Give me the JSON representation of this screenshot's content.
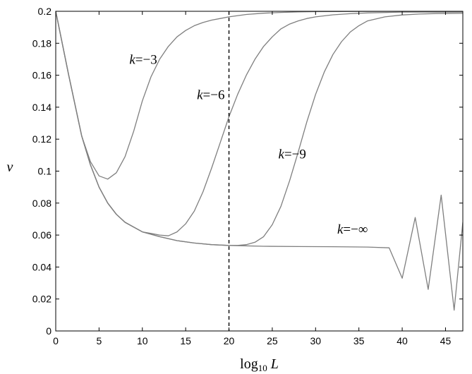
{
  "chart_data": {
    "type": "line",
    "title": "",
    "xlabel": {
      "base": "log",
      "sub": "10",
      "var": "L"
    },
    "ylabel": "ν",
    "xlim": [
      0,
      47
    ],
    "ylim": [
      0,
      0.2
    ],
    "x_ticks": [
      0,
      5,
      10,
      15,
      20,
      25,
      30,
      35,
      40,
      45
    ],
    "y_ticks": [
      0,
      0.02,
      0.04,
      0.06,
      0.08,
      0.1,
      0.12,
      0.14,
      0.16,
      0.18,
      0.2
    ],
    "x_tick_labels": [
      "0",
      "5",
      "10",
      "15",
      "20",
      "25",
      "30",
      "35",
      "40",
      "45"
    ],
    "y_tick_labels": [
      "0",
      "0.02",
      "0.04",
      "0.06",
      "0.08",
      "0.1",
      "0.12",
      "0.14",
      "0.16",
      "0.18",
      "0.2"
    ],
    "grid": false,
    "legend": "none",
    "line_color": "#7f7f7f",
    "vertical_marker": {
      "x": 20,
      "style": "dashed",
      "color": "#000000"
    },
    "series": [
      {
        "label": "k=−3",
        "label_pos": [
          8.5,
          0.167
        ],
        "x": [
          0,
          1.5,
          3,
          4,
          5,
          6,
          7,
          8,
          9,
          10,
          11,
          12,
          13,
          14,
          15,
          16,
          17,
          18,
          19,
          20,
          22,
          24,
          26,
          28,
          30,
          35,
          40,
          47
        ],
        "y": [
          0.2,
          0.16,
          0.122,
          0.106,
          0.097,
          0.095,
          0.099,
          0.109,
          0.125,
          0.144,
          0.159,
          0.17,
          0.178,
          0.184,
          0.188,
          0.191,
          0.193,
          0.1945,
          0.1955,
          0.1965,
          0.198,
          0.1988,
          0.1993,
          0.1996,
          0.1998,
          0.1999,
          0.2,
          0.2
        ]
      },
      {
        "label": "k=−6",
        "label_pos": [
          16.3,
          0.145
        ],
        "x": [
          0,
          1.5,
          3,
          4,
          5,
          6,
          7,
          8,
          9,
          10,
          11,
          12,
          13,
          14,
          15,
          16,
          17,
          18,
          19,
          20,
          21,
          22,
          23,
          24,
          25,
          26,
          27,
          28,
          29,
          30,
          32,
          34,
          36,
          40,
          47
        ],
        "y": [
          0.2,
          0.16,
          0.122,
          0.104,
          0.09,
          0.08,
          0.073,
          0.068,
          0.065,
          0.062,
          0.061,
          0.06,
          0.0595,
          0.062,
          0.067,
          0.075,
          0.087,
          0.102,
          0.118,
          0.134,
          0.148,
          0.16,
          0.17,
          0.178,
          0.184,
          0.189,
          0.192,
          0.194,
          0.1955,
          0.1965,
          0.1978,
          0.1985,
          0.199,
          0.1995,
          0.1995
        ]
      },
      {
        "label": "k=−9",
        "label_pos": [
          25.7,
          0.108
        ],
        "x": [
          0,
          1.5,
          3,
          4,
          5,
          6,
          7,
          8,
          9,
          10,
          12,
          14,
          16,
          18,
          20,
          21,
          22,
          23,
          24,
          25,
          26,
          27,
          28,
          29,
          30,
          31,
          32,
          33,
          34,
          35,
          36,
          38,
          40,
          42,
          44,
          47
        ],
        "y": [
          0.2,
          0.16,
          0.122,
          0.104,
          0.09,
          0.08,
          0.073,
          0.068,
          0.065,
          0.062,
          0.059,
          0.0565,
          0.055,
          0.054,
          0.0535,
          0.0535,
          0.054,
          0.0555,
          0.059,
          0.0665,
          0.078,
          0.094,
          0.112,
          0.131,
          0.148,
          0.162,
          0.173,
          0.181,
          0.187,
          0.191,
          0.194,
          0.1965,
          0.1977,
          0.1983,
          0.1986,
          0.1987
        ]
      },
      {
        "label": "k=−∞",
        "label_pos": [
          32.5,
          0.061
        ],
        "x": [
          0,
          1.5,
          3,
          4,
          5,
          6,
          7,
          8,
          9,
          10,
          12,
          14,
          16,
          18,
          20,
          24,
          28,
          32,
          36,
          38.5,
          40,
          41.5,
          43,
          44.5,
          46,
          47
        ],
        "y": [
          0.2,
          0.16,
          0.122,
          0.104,
          0.09,
          0.08,
          0.073,
          0.068,
          0.065,
          0.062,
          0.059,
          0.0565,
          0.055,
          0.054,
          0.0535,
          0.053,
          0.0528,
          0.0527,
          0.0525,
          0.052,
          0.033,
          0.071,
          0.026,
          0.085,
          0.013,
          0.068
        ]
      }
    ]
  }
}
